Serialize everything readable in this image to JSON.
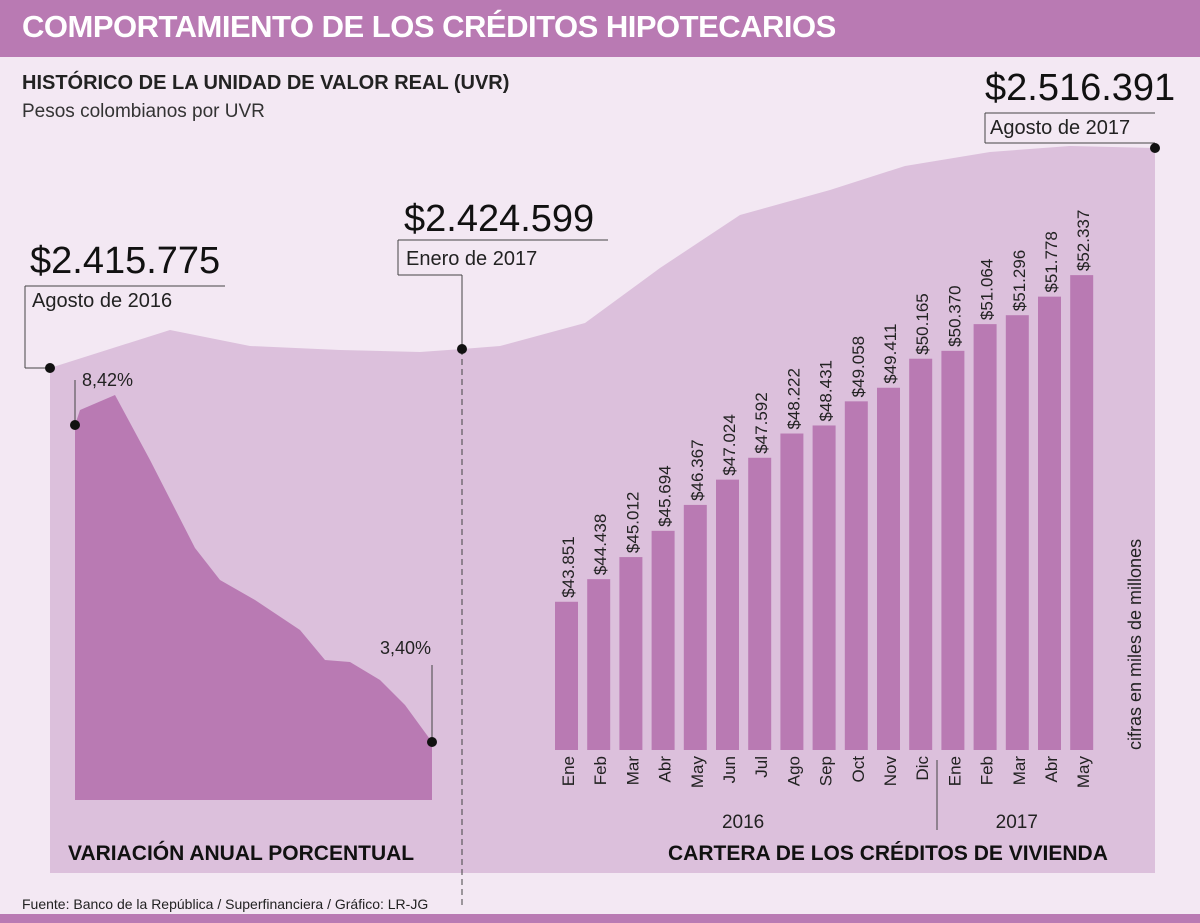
{
  "header": {
    "title": "COMPORTAMIENTO DE LOS CRÉDITOS HIPOTECARIOS"
  },
  "subtitle": {
    "title": "HISTÓRICO DE LA UNIDAD DE VALOR REAL (UVR)",
    "unit": "Pesos colombianos por UVR"
  },
  "colors": {
    "header": "#b97ab3",
    "background": "#f3e8f3",
    "area": "#dcc0dc",
    "bars": "#b97ab3"
  },
  "chart_data": [
    {
      "type": "area",
      "name_shown": "",
      "annotations": [
        {
          "value": "$2.415.775",
          "label": "Agosto de 2016"
        },
        {
          "value": "$2.424.599",
          "label": "Enero de 2017"
        },
        {
          "value": "$2.516.391",
          "label": "Agosto de 2017"
        }
      ]
    },
    {
      "type": "area",
      "title": "VARIACIÓN ANUAL PORCENTUAL",
      "start": {
        "value": 8.42,
        "label": "8,42%"
      },
      "end": {
        "value": 3.4,
        "label": "3,40%"
      }
    },
    {
      "type": "bar",
      "title": "CARTERA DE LOS CRÉDITOS DE VIVIENDA",
      "ylabel": "cifras en miles de millones",
      "categories": [
        "Ene",
        "Feb",
        "Mar",
        "Abr",
        "May",
        "Jun",
        "Jul",
        "Ago",
        "Sep",
        "Oct",
        "Nov",
        "Dic",
        "Ene",
        "Feb",
        "Mar",
        "Abr",
        "May"
      ],
      "years": [
        {
          "label": "2016",
          "from": 0,
          "to": 11
        },
        {
          "label": "2017",
          "from": 12,
          "to": 16
        }
      ],
      "values": [
        43851,
        44438,
        45012,
        45694,
        46367,
        47024,
        47592,
        48222,
        48431,
        49058,
        49411,
        50165,
        50370,
        51064,
        51296,
        51778,
        52337
      ],
      "labels": [
        "$43.851",
        "$44.438",
        "$45.012",
        "$45.694",
        "$46.367",
        "$47.024",
        "$47.592",
        "$48.222",
        "$48.431",
        "$49.058",
        "$49.411",
        "$50.165",
        "$50.370",
        "$51.064",
        "$51.296",
        "$51.778",
        "$52.337"
      ],
      "ylim": [
        40000,
        52600
      ]
    }
  ],
  "footer": {
    "source": "Fuente: Banco de la República / Superfinanciera / Gráfico: LR-JG"
  }
}
